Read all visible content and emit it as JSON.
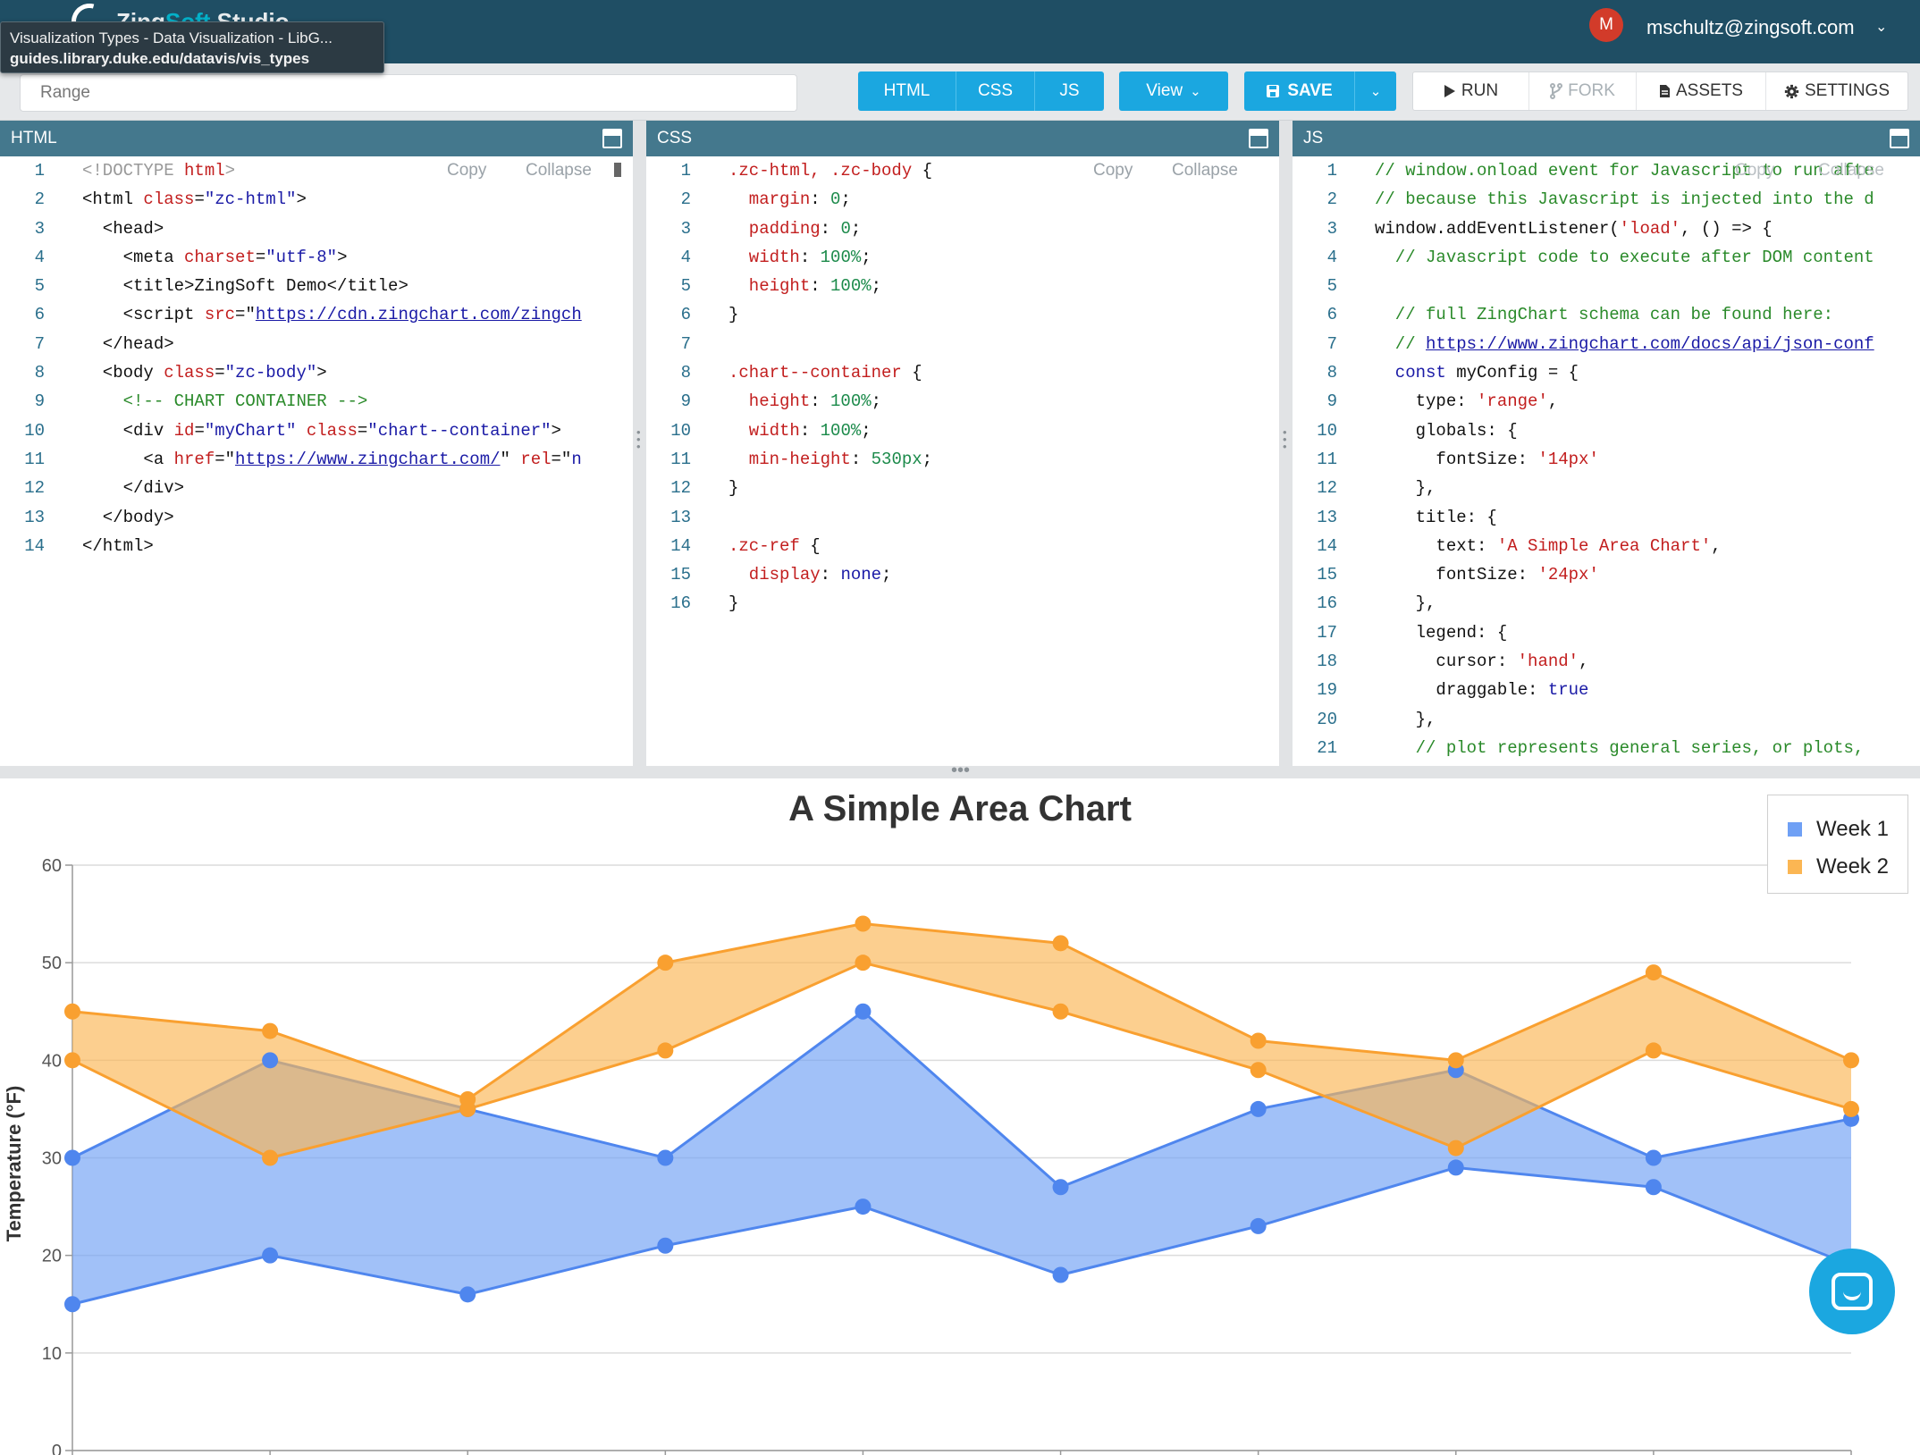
{
  "header": {
    "logo_text_prefix": "Zing",
    "logo_text_accent": "Soft",
    "logo_text_suffix": " Studio",
    "tooltip_title": "Visualization Types - Data Visualization - LibG...",
    "tooltip_url": "guides.library.duke.edu/datavis/vis_types",
    "avatar_initial": "M",
    "user_email": "mschultz@zingsoft.com",
    "user_chevron": "⌄"
  },
  "toolbar": {
    "search_placeholder": "Range",
    "tabs": [
      "HTML",
      "CSS",
      "JS"
    ],
    "view_label": "View",
    "view_chevron": "⌄",
    "save_label": "SAVE",
    "save_chevron": "⌄",
    "run_label": "RUN",
    "fork_label": "FORK",
    "assets_label": "ASSETS",
    "settings_label": "SETTINGS"
  },
  "panels": {
    "html_title": "HTML",
    "css_title": "CSS",
    "js_title": "JS",
    "copy_label": "Copy",
    "collapse_label": "Collapse"
  },
  "html_code": [
    [
      [
        "t-doc",
        "<!DOCTYPE "
      ],
      [
        "t-attr",
        "html"
      ],
      [
        "t-doc",
        ">"
      ]
    ],
    [
      [
        "t-pl",
        "<html "
      ],
      [
        "t-attr",
        "class"
      ],
      [
        "t-pl",
        "="
      ],
      [
        "t-str",
        "\"zc-html\""
      ],
      [
        "t-pl",
        ">"
      ]
    ],
    [
      [
        "t-pl",
        "  <head>"
      ]
    ],
    [
      [
        "t-pl",
        "    <meta "
      ],
      [
        "t-attr",
        "charset"
      ],
      [
        "t-pl",
        "="
      ],
      [
        "t-str",
        "\"utf-8\""
      ],
      [
        "t-pl",
        ">"
      ]
    ],
    [
      [
        "t-pl",
        "    <title>ZingSoft Demo</title>"
      ]
    ],
    [
      [
        "t-pl",
        "    <script "
      ],
      [
        "t-attr",
        "src"
      ],
      [
        "t-pl",
        "=\""
      ],
      [
        "t-link",
        "https://cdn.zingchart.com/zingch"
      ]
    ],
    [
      [
        "t-pl",
        "  </head>"
      ]
    ],
    [
      [
        "t-pl",
        "  <body "
      ],
      [
        "t-attr",
        "class"
      ],
      [
        "t-pl",
        "="
      ],
      [
        "t-str",
        "\"zc-body\""
      ],
      [
        "t-pl",
        ">"
      ]
    ],
    [
      [
        "t-com",
        "    <!-- CHART CONTAINER -->"
      ]
    ],
    [
      [
        "t-pl",
        "    <div "
      ],
      [
        "t-attr",
        "id"
      ],
      [
        "t-pl",
        "="
      ],
      [
        "t-str",
        "\"myChart\""
      ],
      [
        "t-pl",
        " "
      ],
      [
        "t-attr",
        "class"
      ],
      [
        "t-pl",
        "="
      ],
      [
        "t-str",
        "\"chart--container\""
      ],
      [
        "t-pl",
        ">"
      ]
    ],
    [
      [
        "t-pl",
        "      <a "
      ],
      [
        "t-attr",
        "href"
      ],
      [
        "t-pl",
        "=\""
      ],
      [
        "t-link",
        "https://www.zingchart.com/"
      ],
      [
        "t-pl",
        "\" "
      ],
      [
        "t-attr",
        "rel"
      ],
      [
        "t-pl",
        "=\""
      ],
      [
        "t-str",
        "n"
      ]
    ],
    [
      [
        "t-pl",
        "    </div>"
      ]
    ],
    [
      [
        "t-pl",
        "  </body>"
      ]
    ],
    [
      [
        "t-pl",
        "</html>"
      ]
    ]
  ],
  "css_code": [
    [
      [
        "t-sel",
        ".zc-html, .zc-body"
      ],
      [
        "t-pl",
        " {"
      ]
    ],
    [
      [
        "t-prop",
        "  margin"
      ],
      [
        "t-pl",
        ": "
      ],
      [
        "t-val",
        "0"
      ],
      [
        "t-pl",
        ";"
      ]
    ],
    [
      [
        "t-prop",
        "  padding"
      ],
      [
        "t-pl",
        ": "
      ],
      [
        "t-val",
        "0"
      ],
      [
        "t-pl",
        ";"
      ]
    ],
    [
      [
        "t-prop",
        "  width"
      ],
      [
        "t-pl",
        ": "
      ],
      [
        "t-val",
        "100%"
      ],
      [
        "t-pl",
        ";"
      ]
    ],
    [
      [
        "t-prop",
        "  height"
      ],
      [
        "t-pl",
        ": "
      ],
      [
        "t-val",
        "100%"
      ],
      [
        "t-pl",
        ";"
      ]
    ],
    [
      [
        "t-pl",
        "}"
      ]
    ],
    [
      [
        "t-pl",
        ""
      ]
    ],
    [
      [
        "t-sel",
        ".chart--container"
      ],
      [
        "t-pl",
        " {"
      ]
    ],
    [
      [
        "t-prop",
        "  height"
      ],
      [
        "t-pl",
        ": "
      ],
      [
        "t-val",
        "100%"
      ],
      [
        "t-pl",
        ";"
      ]
    ],
    [
      [
        "t-prop",
        "  width"
      ],
      [
        "t-pl",
        ": "
      ],
      [
        "t-val",
        "100%"
      ],
      [
        "t-pl",
        ";"
      ]
    ],
    [
      [
        "t-prop",
        "  min-height"
      ],
      [
        "t-pl",
        ": "
      ],
      [
        "t-val",
        "530px"
      ],
      [
        "t-pl",
        ";"
      ]
    ],
    [
      [
        "t-pl",
        "}"
      ]
    ],
    [
      [
        "t-pl",
        ""
      ]
    ],
    [
      [
        "t-sel",
        ".zc-ref"
      ],
      [
        "t-pl",
        " {"
      ]
    ],
    [
      [
        "t-prop",
        "  display"
      ],
      [
        "t-pl",
        ": "
      ],
      [
        "t-kw",
        "none"
      ],
      [
        "t-pl",
        ";"
      ]
    ],
    [
      [
        "t-pl",
        "}"
      ]
    ]
  ],
  "js_code": [
    [
      [
        "t-com",
        "// window.onload event for Javascript to run afte"
      ]
    ],
    [
      [
        "t-com",
        "// because this Javascript is injected into the d"
      ]
    ],
    [
      [
        "t-pl",
        "window.addEventListener("
      ],
      [
        "t-q",
        "'load'"
      ],
      [
        "t-pl",
        ", () => {"
      ]
    ],
    [
      [
        "t-com",
        "  // Javascript code to execute after DOM content"
      ]
    ],
    [
      [
        "t-pl",
        ""
      ]
    ],
    [
      [
        "t-com",
        "  // full ZingChart schema can be found here:"
      ]
    ],
    [
      [
        "t-com",
        "  // "
      ],
      [
        "t-link",
        "https://www.zingchart.com/docs/api/json-conf"
      ]
    ],
    [
      [
        "t-kw",
        "  const"
      ],
      [
        "t-pl",
        " myConfig = {"
      ]
    ],
    [
      [
        "t-pl",
        "    type: "
      ],
      [
        "t-q",
        "'range'"
      ],
      [
        "t-pl",
        ","
      ]
    ],
    [
      [
        "t-pl",
        "    globals: {"
      ]
    ],
    [
      [
        "t-pl",
        "      fontSize: "
      ],
      [
        "t-q",
        "'14px'"
      ]
    ],
    [
      [
        "t-pl",
        "    },"
      ]
    ],
    [
      [
        "t-pl",
        "    title: {"
      ]
    ],
    [
      [
        "t-pl",
        "      text: "
      ],
      [
        "t-q",
        "'A Simple Area Chart'"
      ],
      [
        "t-pl",
        ","
      ]
    ],
    [
      [
        "t-pl",
        "      fontSize: "
      ],
      [
        "t-q",
        "'24px'"
      ]
    ],
    [
      [
        "t-pl",
        "    },"
      ]
    ],
    [
      [
        "t-pl",
        "    legend: {"
      ]
    ],
    [
      [
        "t-pl",
        "      cursor: "
      ],
      [
        "t-q",
        "'hand'"
      ],
      [
        "t-pl",
        ","
      ]
    ],
    [
      [
        "t-pl",
        "      draggable: "
      ],
      [
        "t-kw",
        "true"
      ]
    ],
    [
      [
        "t-pl",
        "    },"
      ]
    ],
    [
      [
        "t-com",
        "    // plot represents general series, or plots,"
      ]
    ]
  ],
  "colors": {
    "week1": "#6fa0f5",
    "week1_line": "#4f86ee",
    "week2": "#fbb653",
    "week2_line": "#f9a030"
  },
  "chart_data": {
    "type": "area",
    "title": "A Simple Area Chart",
    "ylabel": "Temperature (°F)",
    "xlabel": "",
    "ylim": [
      0,
      60
    ],
    "yticks": [
      0,
      10,
      20,
      30,
      40,
      50,
      60
    ],
    "grid": true,
    "legend_position": "top-right",
    "series": [
      {
        "name": "Week 1",
        "color": "#6fa0f5",
        "ranges": [
          [
            15,
            30
          ],
          [
            20,
            40
          ],
          [
            16,
            35
          ],
          [
            21,
            30
          ],
          [
            25,
            45
          ],
          [
            18,
            27
          ],
          [
            23,
            35
          ],
          [
            29,
            39
          ],
          [
            27,
            30
          ],
          [
            19,
            34
          ]
        ]
      },
      {
        "name": "Week 2",
        "color": "#fbb653",
        "ranges": [
          [
            40,
            45
          ],
          [
            30,
            43
          ],
          [
            35,
            36
          ],
          [
            41,
            50
          ],
          [
            50,
            54
          ],
          [
            45,
            52
          ],
          [
            39,
            42
          ],
          [
            31,
            40
          ],
          [
            41,
            49
          ],
          [
            35,
            40
          ]
        ]
      }
    ]
  },
  "misc": {
    "chat_button": "chat"
  }
}
